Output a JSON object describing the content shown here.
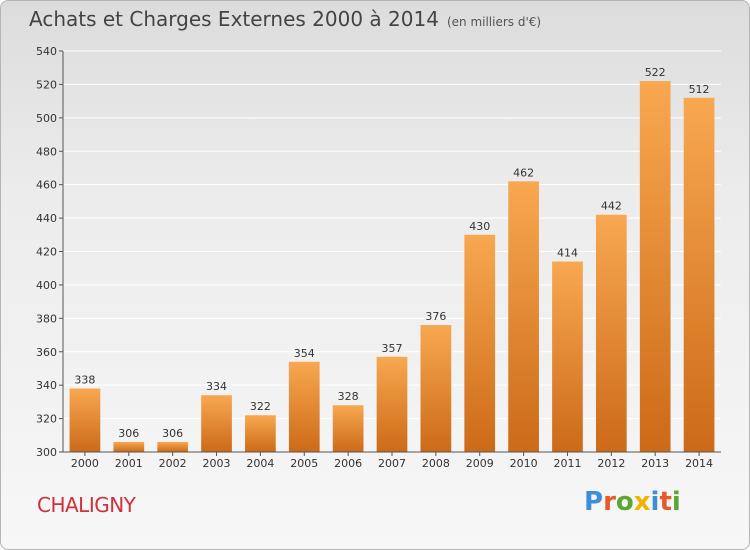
{
  "title": "Achats et Charges Externes 2000 à 2014",
  "subtitle": "(en milliers d'€)",
  "location": "CHALIGNY",
  "logo": {
    "letters": [
      "P",
      "r",
      "o",
      "x",
      "i",
      "t",
      "i"
    ],
    "colors": [
      "#3a8fd8",
      "#e85a2a",
      "#5aa832",
      "#f0b400",
      "#3a8fd8",
      "#e85a2a",
      "#5aa832"
    ]
  },
  "colors": {
    "bar_light": "#f8a850",
    "bar_dark": "#cc6a18",
    "axis": "#555555",
    "grid": "#ffffff"
  },
  "chart_data": {
    "type": "bar",
    "categories": [
      "2000",
      "2001",
      "2002",
      "2003",
      "2004",
      "2005",
      "2006",
      "2007",
      "2008",
      "2009",
      "2010",
      "2011",
      "2012",
      "2013",
      "2014"
    ],
    "values": [
      338,
      306,
      306,
      334,
      322,
      354,
      328,
      357,
      376,
      430,
      462,
      414,
      442,
      522,
      512
    ],
    "ylim": [
      300,
      540
    ],
    "yticks": [
      300,
      320,
      340,
      360,
      380,
      400,
      420,
      440,
      460,
      480,
      500,
      520,
      540
    ],
    "grid": true,
    "data_labels": true
  }
}
